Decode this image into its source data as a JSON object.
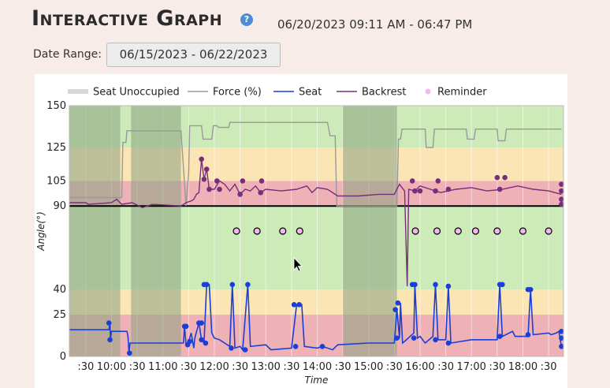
{
  "header": {
    "title": "Interactive Graph",
    "help_icon": "question-mark-icon",
    "range_display": "06/20/2023 09:11 AM - 06:47 PM"
  },
  "filters": {
    "date_range_label": "Date Range:",
    "date_range_value": "06/15/2023 - 06/22/2023"
  },
  "colors": {
    "green_band": "#cdeab9",
    "yellow_band": "#fbe5b5",
    "red_band": "#eeb1b5",
    "seat_unoccupied": "#8aa080",
    "force": "#999999",
    "seat": "#1a3fd9",
    "backrest": "#7a2d7a",
    "reminder_fill": "#f2b8ef",
    "reference_line": "#000000"
  },
  "chart_data": {
    "type": "line",
    "title": "",
    "xlabel": "Time",
    "ylabel": "Angle(°)",
    "x_range_hours": [
      9.18,
      18.79
    ],
    "ylim": [
      0,
      150
    ],
    "y_ticks": [
      0,
      25,
      40,
      90,
      105,
      125,
      150
    ],
    "x_ticks": [
      {
        "t": 9.5,
        "label": ":30"
      },
      {
        "t": 10.0,
        "label": "10:00"
      },
      {
        "t": 10.5,
        "label": ":30"
      },
      {
        "t": 11.0,
        "label": "11:00"
      },
      {
        "t": 11.5,
        "label": ":30"
      },
      {
        "t": 12.0,
        "label": "12:00"
      },
      {
        "t": 12.5,
        "label": ":30"
      },
      {
        "t": 13.0,
        "label": "13:00"
      },
      {
        "t": 13.5,
        "label": ":30"
      },
      {
        "t": 14.0,
        "label": "14:00"
      },
      {
        "t": 14.5,
        "label": ":30"
      },
      {
        "t": 15.0,
        "label": "15:00"
      },
      {
        "t": 15.5,
        "label": ":30"
      },
      {
        "t": 16.0,
        "label": "16:00"
      },
      {
        "t": 16.5,
        "label": ":30"
      },
      {
        "t": 17.0,
        "label": "17:00"
      },
      {
        "t": 17.5,
        "label": ":30"
      },
      {
        "t": 18.0,
        "label": "18:00"
      },
      {
        "t": 18.5,
        "label": ":30"
      }
    ],
    "bands": [
      {
        "from": 0,
        "to": 25,
        "zone": "red"
      },
      {
        "from": 25,
        "to": 40,
        "zone": "yellow"
      },
      {
        "from": 40,
        "to": 90,
        "zone": "green"
      },
      {
        "from": 90,
        "to": 105,
        "zone": "red"
      },
      {
        "from": 105,
        "to": 125,
        "zone": "yellow"
      },
      {
        "from": 125,
        "to": 150,
        "zone": "green"
      }
    ],
    "reference_line": 90,
    "legend": [
      {
        "name": "Seat Unoccupied",
        "kind": "band"
      },
      {
        "name": "Force (%)",
        "kind": "line",
        "color": "#999999"
      },
      {
        "name": "Seat",
        "kind": "line",
        "color": "#1a3fd9"
      },
      {
        "name": "Backrest",
        "kind": "line",
        "color": "#7a2d7a"
      },
      {
        "name": "Reminder",
        "kind": "dot"
      }
    ],
    "seat_unoccupied_intervals": [
      [
        9.18,
        10.17
      ],
      [
        10.38,
        11.35
      ],
      [
        14.5,
        15.55
      ]
    ],
    "series": [
      {
        "name": "Force (%)",
        "points": [
          [
            9.18,
            95
          ],
          [
            10.2,
            95
          ],
          [
            10.22,
            128
          ],
          [
            10.28,
            128
          ],
          [
            10.3,
            135
          ],
          [
            11.35,
            135
          ],
          [
            11.45,
            90
          ],
          [
            11.5,
            110
          ],
          [
            11.52,
            138
          ],
          [
            11.75,
            138
          ],
          [
            11.78,
            130
          ],
          [
            11.95,
            130
          ],
          [
            11.98,
            138
          ],
          [
            12.05,
            138
          ],
          [
            12.08,
            137
          ],
          [
            12.28,
            137
          ],
          [
            12.3,
            140
          ],
          [
            14.2,
            140
          ],
          [
            14.25,
            132
          ],
          [
            14.35,
            132
          ],
          [
            14.38,
            90
          ],
          [
            15.55,
            90
          ],
          [
            15.58,
            130
          ],
          [
            15.62,
            130
          ],
          [
            15.65,
            136
          ],
          [
            16.1,
            136
          ],
          [
            16.12,
            125
          ],
          [
            16.25,
            125
          ],
          [
            16.28,
            136
          ],
          [
            16.9,
            136
          ],
          [
            16.92,
            130
          ],
          [
            17.05,
            130
          ],
          [
            17.08,
            136
          ],
          [
            17.5,
            136
          ],
          [
            17.52,
            129
          ],
          [
            17.65,
            129
          ],
          [
            17.68,
            136
          ],
          [
            18.75,
            136
          ]
        ]
      },
      {
        "name": "Seat",
        "points": [
          [
            9.18,
            16
          ],
          [
            9.95,
            16
          ],
          [
            9.97,
            20
          ],
          [
            9.98,
            10
          ],
          [
            10.0,
            15
          ],
          [
            10.3,
            15
          ],
          [
            10.32,
            12
          ],
          [
            10.34,
            2
          ],
          [
            10.36,
            8
          ],
          [
            11.4,
            8
          ],
          [
            11.42,
            18
          ],
          [
            11.45,
            7
          ],
          [
            11.5,
            9
          ],
          [
            11.55,
            14
          ],
          [
            11.6,
            5
          ],
          [
            11.62,
            11
          ],
          [
            11.7,
            20
          ],
          [
            11.75,
            10
          ],
          [
            11.8,
            8
          ],
          [
            11.85,
            43
          ],
          [
            11.9,
            43
          ],
          [
            11.95,
            14
          ],
          [
            12.0,
            11
          ],
          [
            12.1,
            10
          ],
          [
            12.2,
            8
          ],
          [
            12.3,
            6
          ],
          [
            12.35,
            43
          ],
          [
            12.4,
            5
          ],
          [
            12.5,
            6
          ],
          [
            12.55,
            4
          ],
          [
            12.65,
            43
          ],
          [
            12.7,
            6
          ],
          [
            13.0,
            7
          ],
          [
            13.1,
            4
          ],
          [
            13.5,
            5
          ],
          [
            13.6,
            31
          ],
          [
            13.7,
            31
          ],
          [
            13.75,
            6
          ],
          [
            14.0,
            5
          ],
          [
            14.1,
            6
          ],
          [
            14.3,
            4
          ],
          [
            14.4,
            7
          ],
          [
            15.0,
            8
          ],
          [
            15.5,
            8
          ],
          [
            15.55,
            28
          ],
          [
            15.6,
            11
          ],
          [
            15.62,
            32
          ],
          [
            15.66,
            8
          ],
          [
            15.7,
            9
          ],
          [
            15.88,
            14
          ],
          [
            15.9,
            43
          ],
          [
            15.95,
            11
          ],
          [
            16.0,
            12
          ],
          [
            16.1,
            8
          ],
          [
            16.25,
            12
          ],
          [
            16.3,
            43
          ],
          [
            16.35,
            10
          ],
          [
            16.5,
            10
          ],
          [
            16.55,
            42
          ],
          [
            16.6,
            8
          ],
          [
            17.0,
            10
          ],
          [
            17.5,
            10
          ],
          [
            17.55,
            43
          ],
          [
            17.6,
            12
          ],
          [
            17.8,
            15
          ],
          [
            17.85,
            12
          ],
          [
            18.1,
            12
          ],
          [
            18.15,
            40
          ],
          [
            18.2,
            13
          ],
          [
            18.5,
            14
          ],
          [
            18.55,
            13
          ],
          [
            18.65,
            14
          ],
          [
            18.7,
            15
          ],
          [
            18.75,
            6
          ]
        ]
      },
      {
        "name": "Backrest",
        "points": [
          [
            9.18,
            92
          ],
          [
            9.5,
            92
          ],
          [
            9.55,
            91
          ],
          [
            10.0,
            92
          ],
          [
            10.1,
            94
          ],
          [
            10.2,
            91
          ],
          [
            10.4,
            92
          ],
          [
            10.6,
            89
          ],
          [
            10.8,
            91
          ],
          [
            11.35,
            90
          ],
          [
            11.45,
            92
          ],
          [
            11.55,
            93
          ],
          [
            11.6,
            94
          ],
          [
            11.65,
            97
          ],
          [
            11.7,
            98
          ],
          [
            11.75,
            118
          ],
          [
            11.8,
            106
          ],
          [
            11.85,
            112
          ],
          [
            11.9,
            100
          ],
          [
            12.0,
            100
          ],
          [
            12.1,
            105
          ],
          [
            12.2,
            103
          ],
          [
            12.3,
            99
          ],
          [
            12.4,
            103
          ],
          [
            12.5,
            97
          ],
          [
            12.6,
            100
          ],
          [
            12.7,
            99
          ],
          [
            12.8,
            102
          ],
          [
            12.9,
            98
          ],
          [
            13.0,
            100
          ],
          [
            13.3,
            99
          ],
          [
            13.6,
            100
          ],
          [
            13.8,
            102
          ],
          [
            13.9,
            98
          ],
          [
            14.0,
            101
          ],
          [
            14.2,
            100
          ],
          [
            14.4,
            96
          ],
          [
            14.8,
            96
          ],
          [
            15.2,
            97
          ],
          [
            15.5,
            97
          ],
          [
            15.55,
            100
          ],
          [
            15.6,
            103
          ],
          [
            15.65,
            101
          ],
          [
            15.7,
            99
          ],
          [
            15.75,
            42
          ],
          [
            15.78,
            100
          ],
          [
            15.9,
            99
          ],
          [
            16.0,
            102
          ],
          [
            16.2,
            100
          ],
          [
            16.4,
            98
          ],
          [
            16.7,
            100
          ],
          [
            17.0,
            101
          ],
          [
            17.3,
            99
          ],
          [
            17.6,
            100
          ],
          [
            17.9,
            102
          ],
          [
            18.2,
            100
          ],
          [
            18.5,
            99
          ],
          [
            18.75,
            97
          ]
        ]
      }
    ],
    "seat_markers": [
      [
        9.95,
        20
      ],
      [
        9.97,
        10
      ],
      [
        10.35,
        2
      ],
      [
        11.42,
        18
      ],
      [
        11.45,
        18
      ],
      [
        11.48,
        7
      ],
      [
        11.52,
        9
      ],
      [
        11.7,
        20
      ],
      [
        11.75,
        20
      ],
      [
        11.75,
        10
      ],
      [
        11.8,
        43
      ],
      [
        11.85,
        43
      ],
      [
        11.83,
        8
      ],
      [
        12.35,
        43
      ],
      [
        12.33,
        5
      ],
      [
        12.65,
        43
      ],
      [
        12.6,
        4
      ],
      [
        13.55,
        31
      ],
      [
        13.65,
        31
      ],
      [
        13.58,
        6
      ],
      [
        14.1,
        6
      ],
      [
        15.52,
        28
      ],
      [
        15.57,
        32
      ],
      [
        15.55,
        11
      ],
      [
        15.85,
        43
      ],
      [
        15.9,
        43
      ],
      [
        15.88,
        11
      ],
      [
        16.3,
        43
      ],
      [
        16.3,
        10
      ],
      [
        16.55,
        42
      ],
      [
        16.55,
        8
      ],
      [
        17.55,
        43
      ],
      [
        17.6,
        43
      ],
      [
        17.55,
        12
      ],
      [
        18.1,
        40
      ],
      [
        18.15,
        40
      ],
      [
        18.1,
        13
      ],
      [
        18.75,
        15
      ],
      [
        18.75,
        11
      ],
      [
        18.75,
        6
      ]
    ],
    "backrest_markers": [
      [
        11.75,
        118
      ],
      [
        11.8,
        106
      ],
      [
        11.85,
        112
      ],
      [
        11.9,
        100
      ],
      [
        12.05,
        105
      ],
      [
        12.1,
        100
      ],
      [
        12.5,
        97
      ],
      [
        12.55,
        105
      ],
      [
        12.9,
        98
      ],
      [
        12.92,
        105
      ],
      [
        15.85,
        105
      ],
      [
        15.9,
        99
      ],
      [
        16.0,
        99
      ],
      [
        16.35,
        105
      ],
      [
        16.3,
        99
      ],
      [
        16.55,
        100
      ],
      [
        17.5,
        107
      ],
      [
        17.55,
        100
      ],
      [
        17.65,
        107
      ],
      [
        18.75,
        103
      ],
      [
        18.75,
        99
      ],
      [
        18.75,
        94
      ],
      [
        18.75,
        91
      ]
    ],
    "reminders": [
      [
        12.43,
        75
      ],
      [
        12.83,
        75
      ],
      [
        13.33,
        75
      ],
      [
        13.66,
        75
      ],
      [
        15.91,
        75
      ],
      [
        16.33,
        75
      ],
      [
        16.74,
        75
      ],
      [
        17.08,
        75
      ],
      [
        17.5,
        75
      ],
      [
        18.0,
        75
      ],
      [
        18.5,
        75
      ]
    ]
  }
}
